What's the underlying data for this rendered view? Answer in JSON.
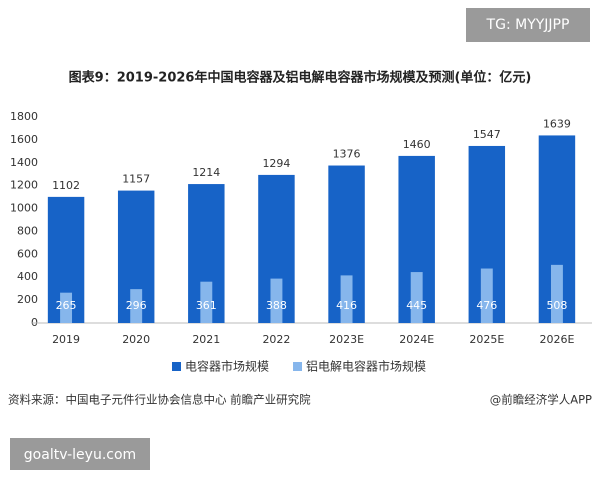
{
  "watermark_top": "TG: MYYJJPP",
  "chart_data": {
    "type": "bar",
    "title": "图表9：2019-2026年中国电容器及铝电解电容器市场规模及预测(单位：亿元)",
    "categories": [
      "2019",
      "2020",
      "2021",
      "2022",
      "2023E",
      "2024E",
      "2025E",
      "2026E"
    ],
    "series": [
      {
        "name": "电容器市场规模",
        "color": "#1763c7",
        "values": [
          1102,
          1157,
          1214,
          1294,
          1376,
          1460,
          1547,
          1639
        ]
      },
      {
        "name": "铝电解电容器市场规模",
        "color": "#86b6ec",
        "values": [
          265,
          296,
          361,
          388,
          416,
          445,
          476,
          508
        ]
      }
    ],
    "ylim": [
      0,
      1800
    ],
    "yticks": [
      0,
      200,
      400,
      600,
      800,
      1000,
      1200,
      1400,
      1600,
      1800
    ],
    "grid": false,
    "source": "资料来源：中国电子元件行业协会信息中心 前瞻产业研究院",
    "credit": "@前瞻经济学人APP"
  },
  "watermark_bottom": "goaltv-leyu.com"
}
